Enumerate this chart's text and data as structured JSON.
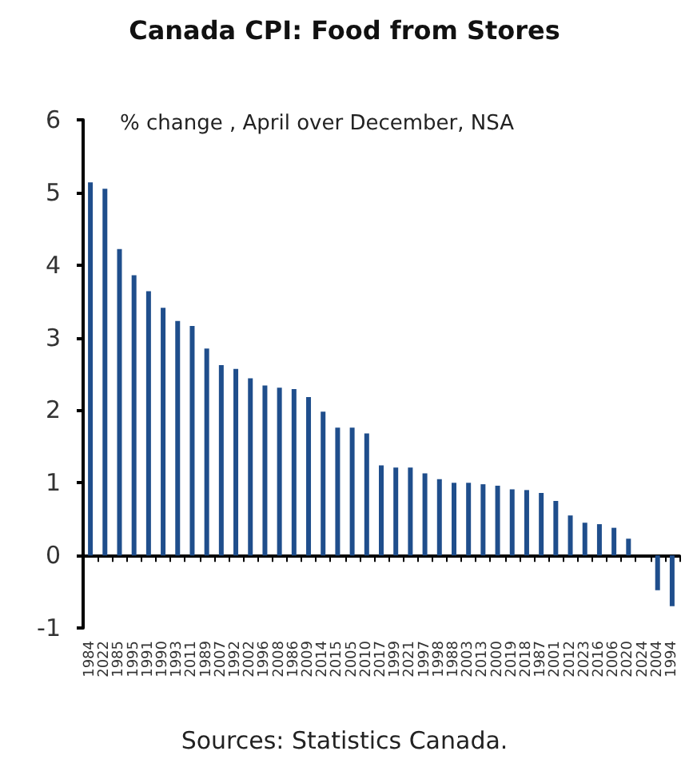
{
  "chart_data": {
    "type": "bar",
    "title": "Canada CPI: Food from Stores",
    "subtitle": "% change , April over December, NSA",
    "categories": [
      "1984",
      "2022",
      "1985",
      "1995",
      "1991",
      "1990",
      "1993",
      "2011",
      "1989",
      "2007",
      "1992",
      "2002",
      "1996",
      "2008",
      "1986",
      "2009",
      "2014",
      "2015",
      "2005",
      "2010",
      "2017",
      "1999",
      "2021",
      "1997",
      "1998",
      "1988",
      "2003",
      "2013",
      "2000",
      "2019",
      "2018",
      "1987",
      "2001",
      "2012",
      "2023",
      "2016",
      "2006",
      "2020",
      "2024",
      "2004",
      "1994"
    ],
    "values": [
      5.14,
      5.05,
      4.22,
      3.86,
      3.64,
      3.41,
      3.23,
      3.16,
      2.85,
      2.62,
      2.57,
      2.44,
      2.34,
      2.31,
      2.29,
      2.18,
      1.98,
      1.76,
      1.76,
      1.68,
      1.24,
      1.21,
      1.21,
      1.13,
      1.05,
      1.0,
      1.0,
      0.98,
      0.96,
      0.91,
      0.9,
      0.86,
      0.75,
      0.55,
      0.45,
      0.43,
      0.38,
      0.23,
      0,
      -0.48,
      -0.7
    ],
    "color": "#1f4e8c",
    "ylim": [
      -1,
      6
    ],
    "yticks": [
      -1,
      0,
      1,
      2,
      3,
      4,
      5,
      6
    ],
    "annotations": [
      "Sources: Statistics Canada."
    ]
  }
}
